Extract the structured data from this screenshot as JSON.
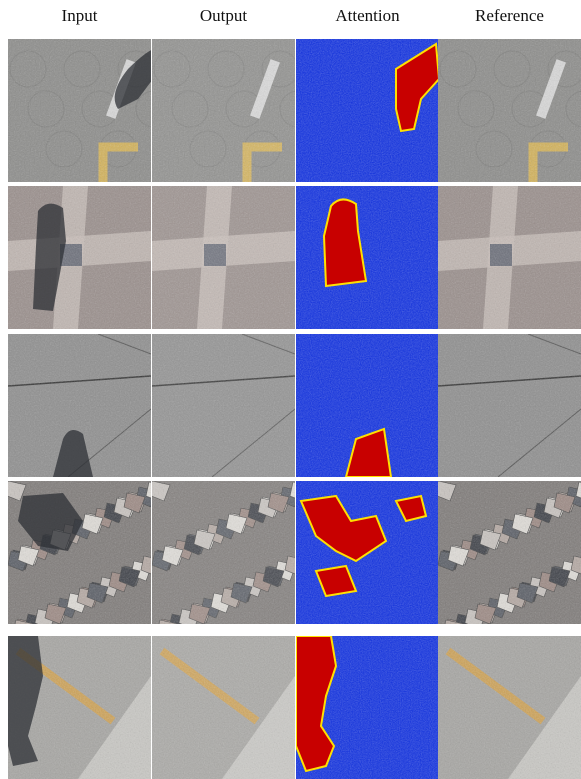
{
  "columns": [
    {
      "key": "input",
      "label": "Input"
    },
    {
      "key": "output",
      "label": "Output"
    },
    {
      "key": "attention",
      "label": "Attention"
    },
    {
      "key": "reference",
      "label": "Reference"
    }
  ],
  "rows": [
    {
      "scene": "gray-tiled-pavement-yellow-marking",
      "shadow": "person-shadow-top-right"
    },
    {
      "scene": "herringbone-brick-cross-path",
      "shadow": "person-shadow-center-left"
    },
    {
      "scene": "concrete-slab-wall",
      "shadow": "person-shadow-bottom"
    },
    {
      "scene": "mosaic-stone-floor",
      "shadow": "irregular-shadow-center"
    },
    {
      "scene": "concrete-ground-yellow-stripe",
      "shadow": "person-shadow-left"
    }
  ],
  "colors": {
    "attention_low": "#0a2ad8",
    "attention_high": "#c80000",
    "attention_edge": "#ffe000"
  }
}
